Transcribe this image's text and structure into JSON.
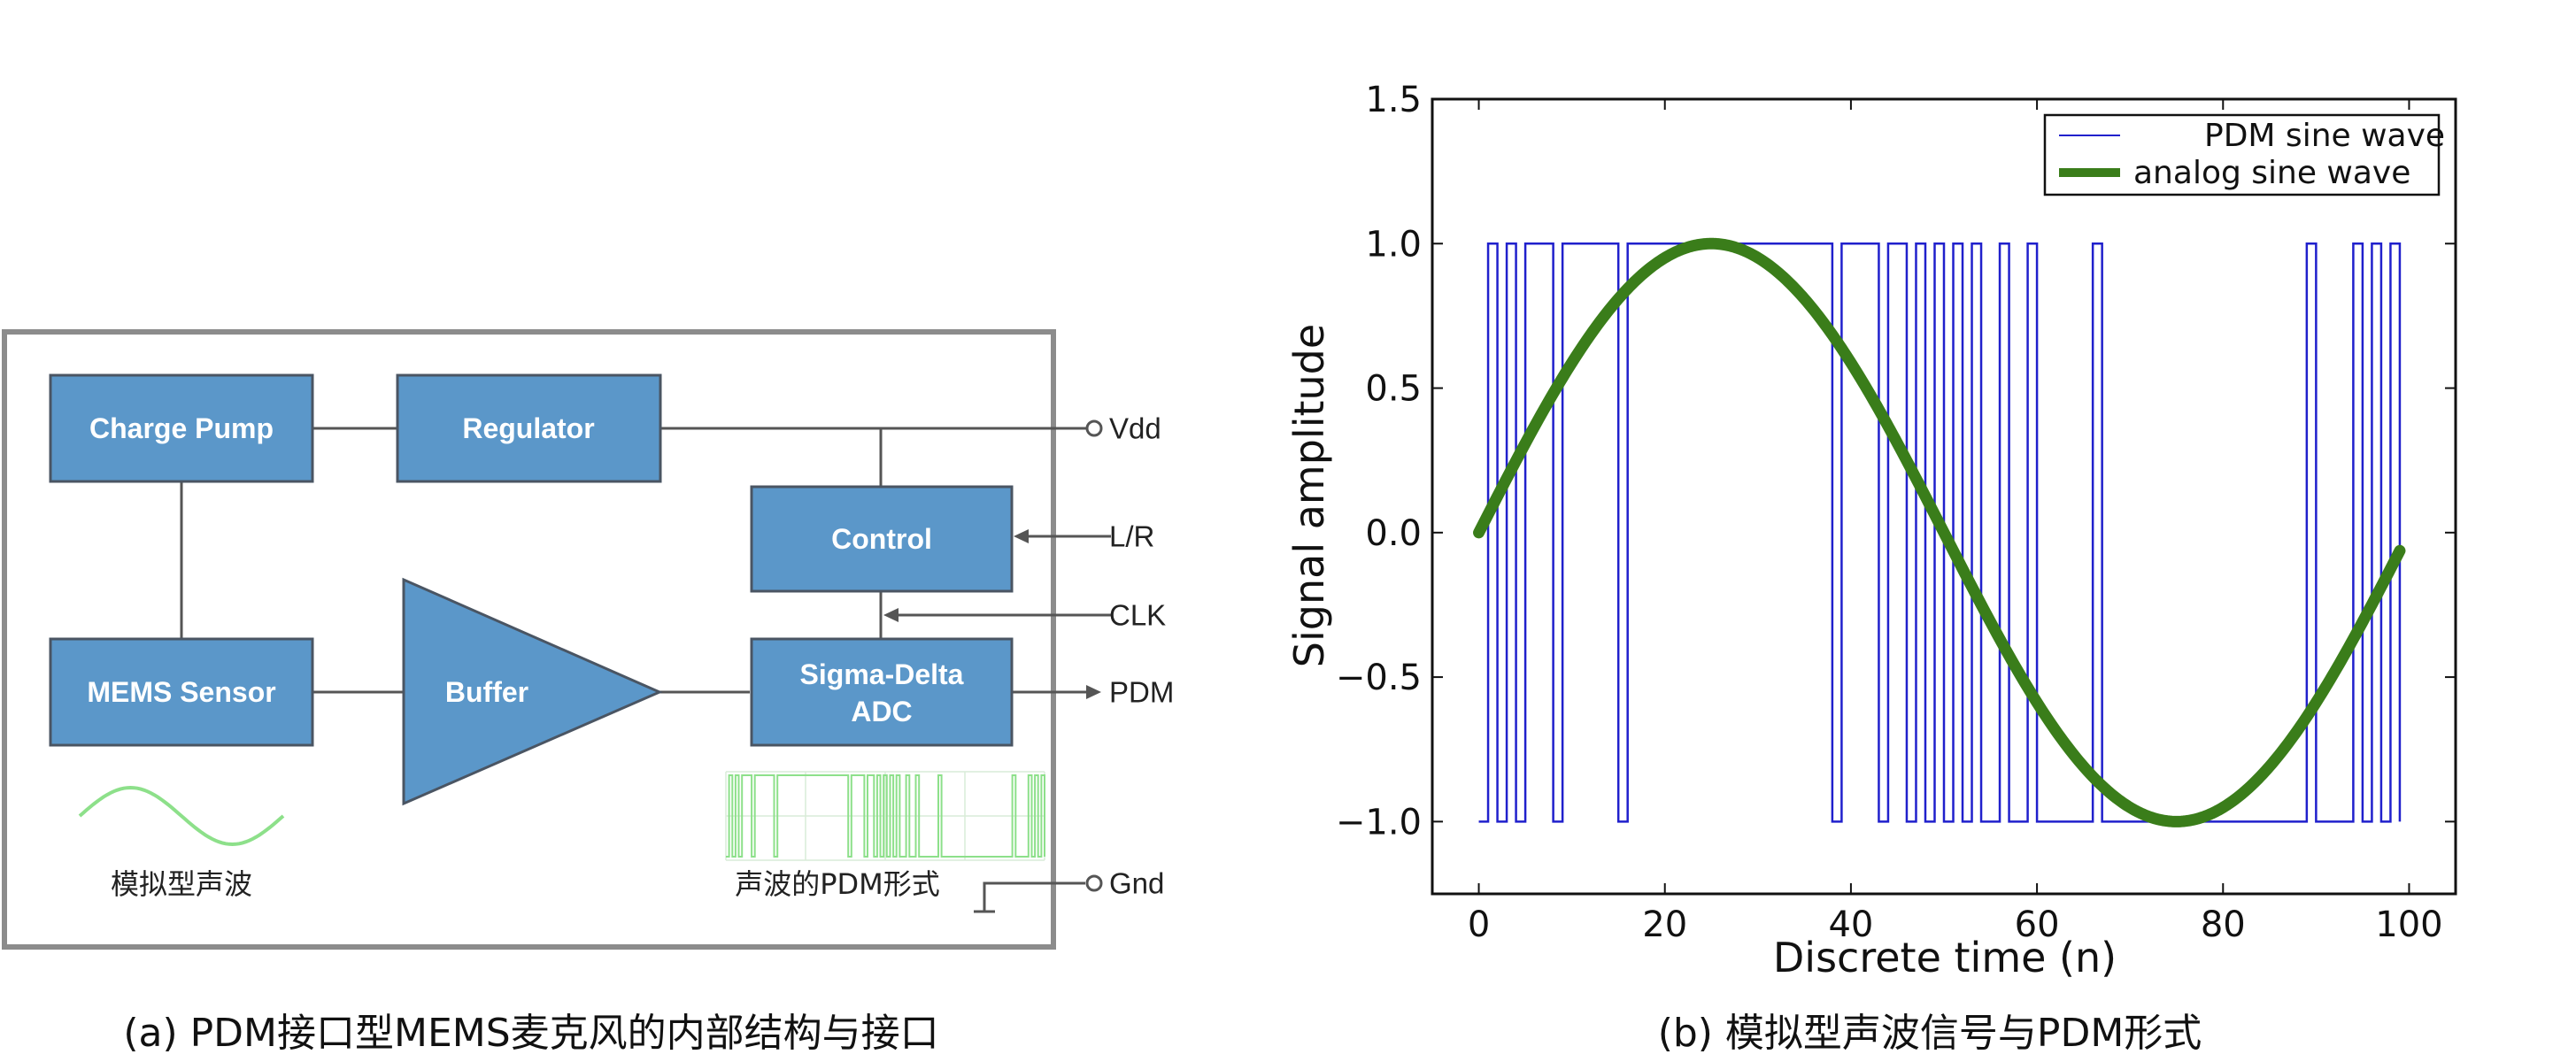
{
  "diagram": {
    "blocks": {
      "charge_pump": "Charge Pump",
      "regulator": "Regulator",
      "control": "Control",
      "mems_sensor": "MEMS Sensor",
      "buffer": "Buffer",
      "sigma_delta_line1": "Sigma-Delta",
      "sigma_delta_line2": "ADC"
    },
    "pins": {
      "vdd": "Vdd",
      "lr": "L/R",
      "clk": "CLK",
      "pdm": "PDM",
      "gnd": "Gnd"
    },
    "analog_label": "模拟型声波",
    "pdm_label": "声波的PDM形式",
    "caption": "(a) PDM接口型MEMS麦克风的内部结构与接口",
    "colors": {
      "block_fill": "#5b97c9",
      "block_stroke": "#4a5563",
      "wave_green": "#8de08a"
    }
  },
  "plot_caption": "(b) 模拟型声波信号与PDM形式",
  "chart_data": {
    "type": "line",
    "xlabel": "Discrete time (n)",
    "ylabel": "Signal amplitude",
    "xlim": [
      -5,
      105
    ],
    "ylim": [
      -1.25,
      1.5
    ],
    "xticks": [
      0,
      20,
      40,
      60,
      80,
      100
    ],
    "yticks": [
      1.5,
      1.0,
      0.5,
      0.0,
      -0.5,
      -1.0
    ],
    "xtick_labels": [
      "0",
      "20",
      "40",
      "60",
      "80",
      "100"
    ],
    "ytick_labels": [
      "1.5",
      "1.0",
      "0.5",
      "0.0",
      "−0.5",
      "−1.0"
    ],
    "grid": false,
    "legend_position": "top-right",
    "series": [
      {
        "name": "PDM sine wave",
        "color": "#2020cc",
        "style": "step",
        "x": [
          0,
          1,
          2,
          3,
          4,
          5,
          6,
          7,
          8,
          9,
          10,
          11,
          12,
          13,
          14,
          15,
          16,
          17,
          18,
          19,
          20,
          21,
          22,
          23,
          24,
          25,
          26,
          27,
          28,
          29,
          30,
          31,
          32,
          33,
          34,
          35,
          36,
          37,
          38,
          39,
          40,
          41,
          42,
          43,
          44,
          45,
          46,
          47,
          48,
          49,
          50,
          51,
          52,
          53,
          54,
          55,
          56,
          57,
          58,
          59,
          60,
          61,
          62,
          63,
          64,
          65,
          66,
          67,
          68,
          69,
          70,
          71,
          72,
          73,
          74,
          75,
          76,
          77,
          78,
          79,
          80,
          81,
          82,
          83,
          84,
          85,
          86,
          87,
          88,
          89,
          90,
          91,
          92,
          93,
          94,
          95,
          96,
          97,
          98,
          99
        ],
        "y": [
          -1,
          1,
          -1,
          1,
          -1,
          1,
          1,
          1,
          -1,
          1,
          1,
          1,
          1,
          1,
          1,
          -1,
          1,
          1,
          1,
          1,
          1,
          1,
          1,
          1,
          1,
          1,
          1,
          1,
          1,
          1,
          1,
          1,
          1,
          1,
          1,
          1,
          1,
          1,
          -1,
          1,
          1,
          1,
          1,
          -1,
          1,
          1,
          -1,
          1,
          -1,
          1,
          -1,
          1,
          -1,
          1,
          -1,
          -1,
          1,
          -1,
          -1,
          1,
          -1,
          -1,
          -1,
          -1,
          -1,
          -1,
          1,
          -1,
          -1,
          -1,
          -1,
          -1,
          -1,
          -1,
          -1,
          -1,
          -1,
          -1,
          -1,
          -1,
          -1,
          -1,
          -1,
          -1,
          -1,
          -1,
          -1,
          -1,
          -1,
          1,
          -1,
          -1,
          -1,
          -1,
          1,
          -1,
          1,
          -1,
          1,
          -1
        ]
      },
      {
        "name": "analog sine wave",
        "color": "#3a7d1a",
        "style": "line",
        "function": "sin(2*pi*n/100)",
        "x_range": [
          0,
          99
        ]
      }
    ]
  }
}
